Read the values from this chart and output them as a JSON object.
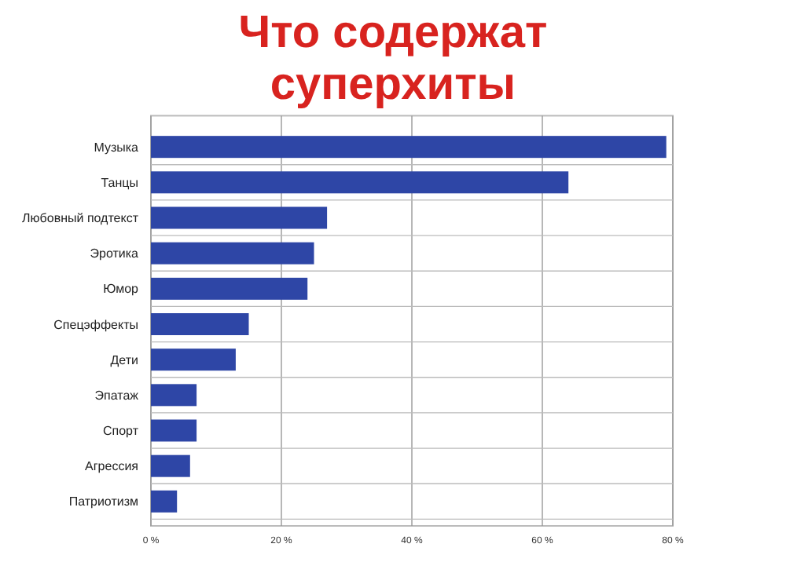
{
  "chart_data": {
    "type": "bar",
    "orientation": "horizontal",
    "title": "Что содержат суперхиты",
    "categories": [
      "Музыка",
      "Танцы",
      "Любовный подтекст",
      "Эротика",
      "Юмор",
      "Спецэффекты",
      "Дети",
      "Эпатаж",
      "Спорт",
      "Агрессия",
      "Патриотизм"
    ],
    "values": [
      79,
      64,
      27,
      25,
      24,
      15,
      13,
      7,
      7,
      6,
      4
    ],
    "color": "#2e46a6",
    "xlim": [
      0,
      80
    ],
    "xticks": [
      {
        "value": 0,
        "label": "0 %"
      },
      {
        "value": 20,
        "label": "20 %"
      },
      {
        "value": 40,
        "label": "40 %"
      },
      {
        "value": 60,
        "label": "60 %"
      },
      {
        "value": 80,
        "label": "80 %"
      }
    ],
    "grid": true
  }
}
